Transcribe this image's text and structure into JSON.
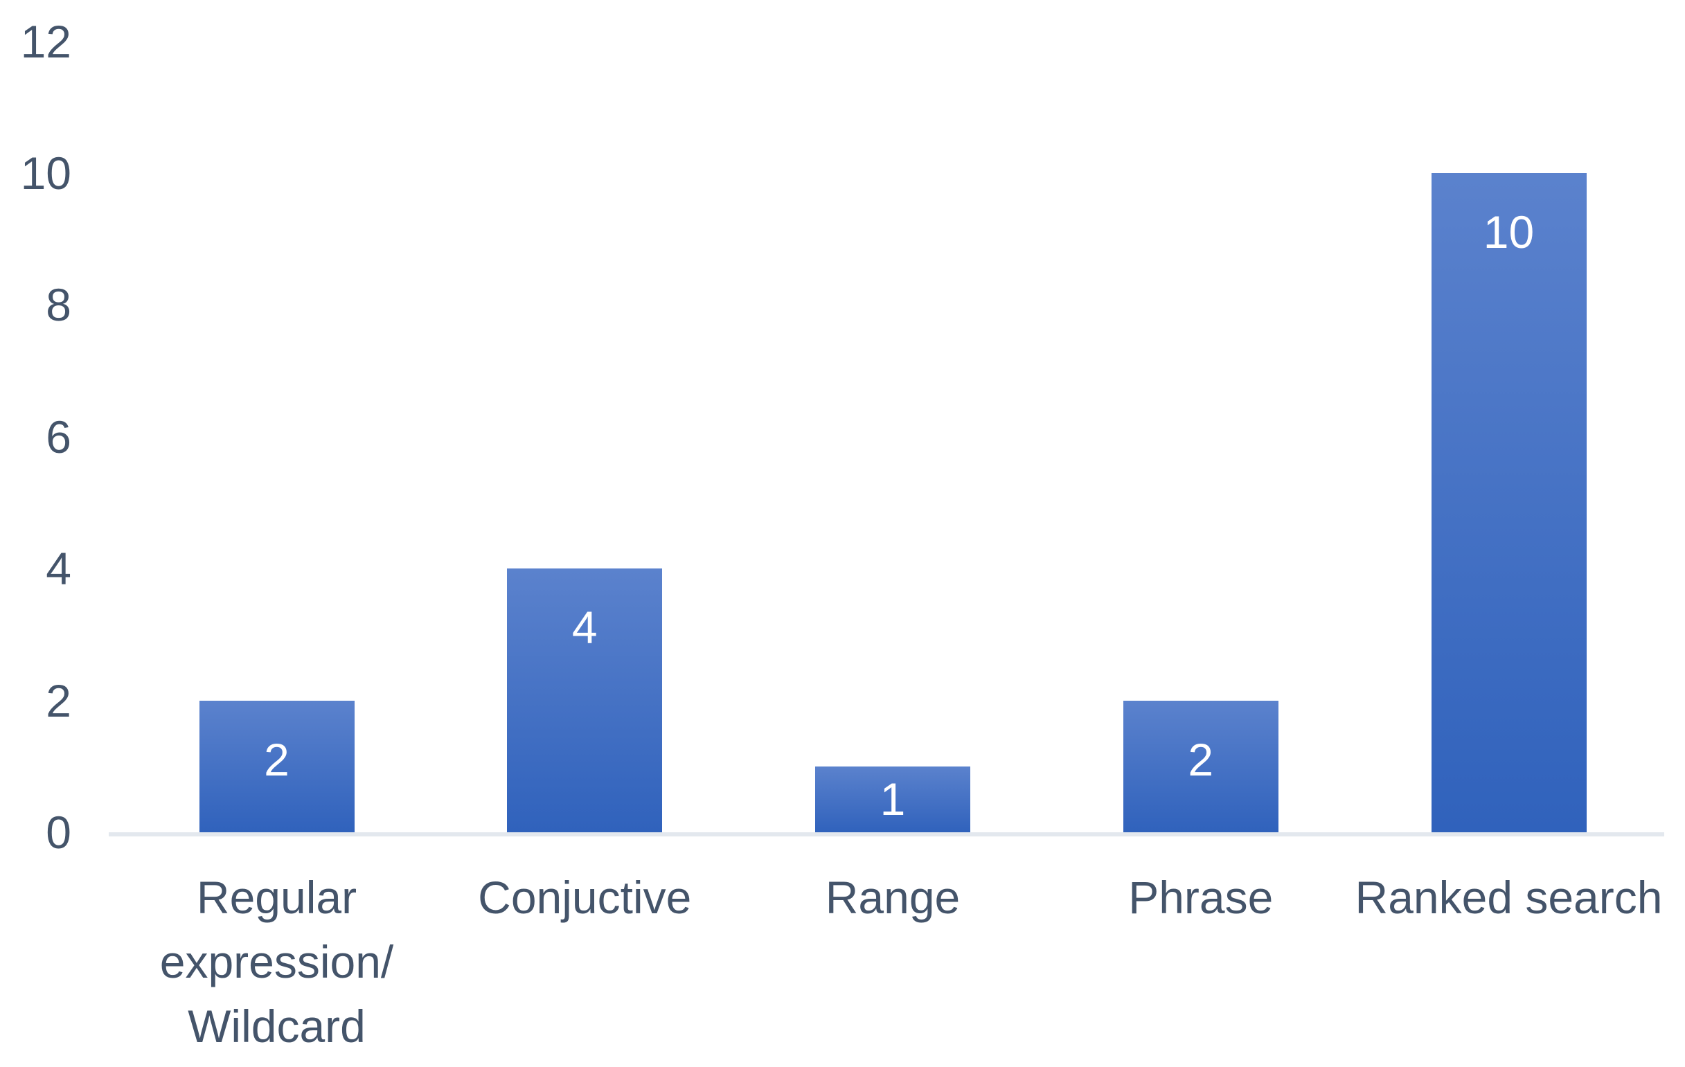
{
  "chart_data": {
    "type": "bar",
    "title": "",
    "xlabel": "",
    "ylabel": "",
    "categories": [
      "Regular expression/ Wildcard",
      "Conjuctive",
      "Range",
      "Phrase",
      "Ranked search"
    ],
    "values": [
      2,
      4,
      1,
      2,
      10
    ],
    "data_labels": [
      "2",
      "4",
      "1",
      "2",
      "10"
    ],
    "ylim": [
      0,
      12
    ],
    "ytick_step": 2,
    "ytick_labels": [
      "0",
      "2",
      "4",
      "6",
      "8",
      "10",
      "12"
    ],
    "grid": "off",
    "legend": "none",
    "colors": {
      "bar_gradient_top": "#5B82CD",
      "bar_gradient_bottom": "#3062BC",
      "axis_text": "#44546A",
      "data_label_text": "#FFFFFF",
      "axis_line": "#E3E8EE",
      "background": "#FFFFFF"
    }
  }
}
